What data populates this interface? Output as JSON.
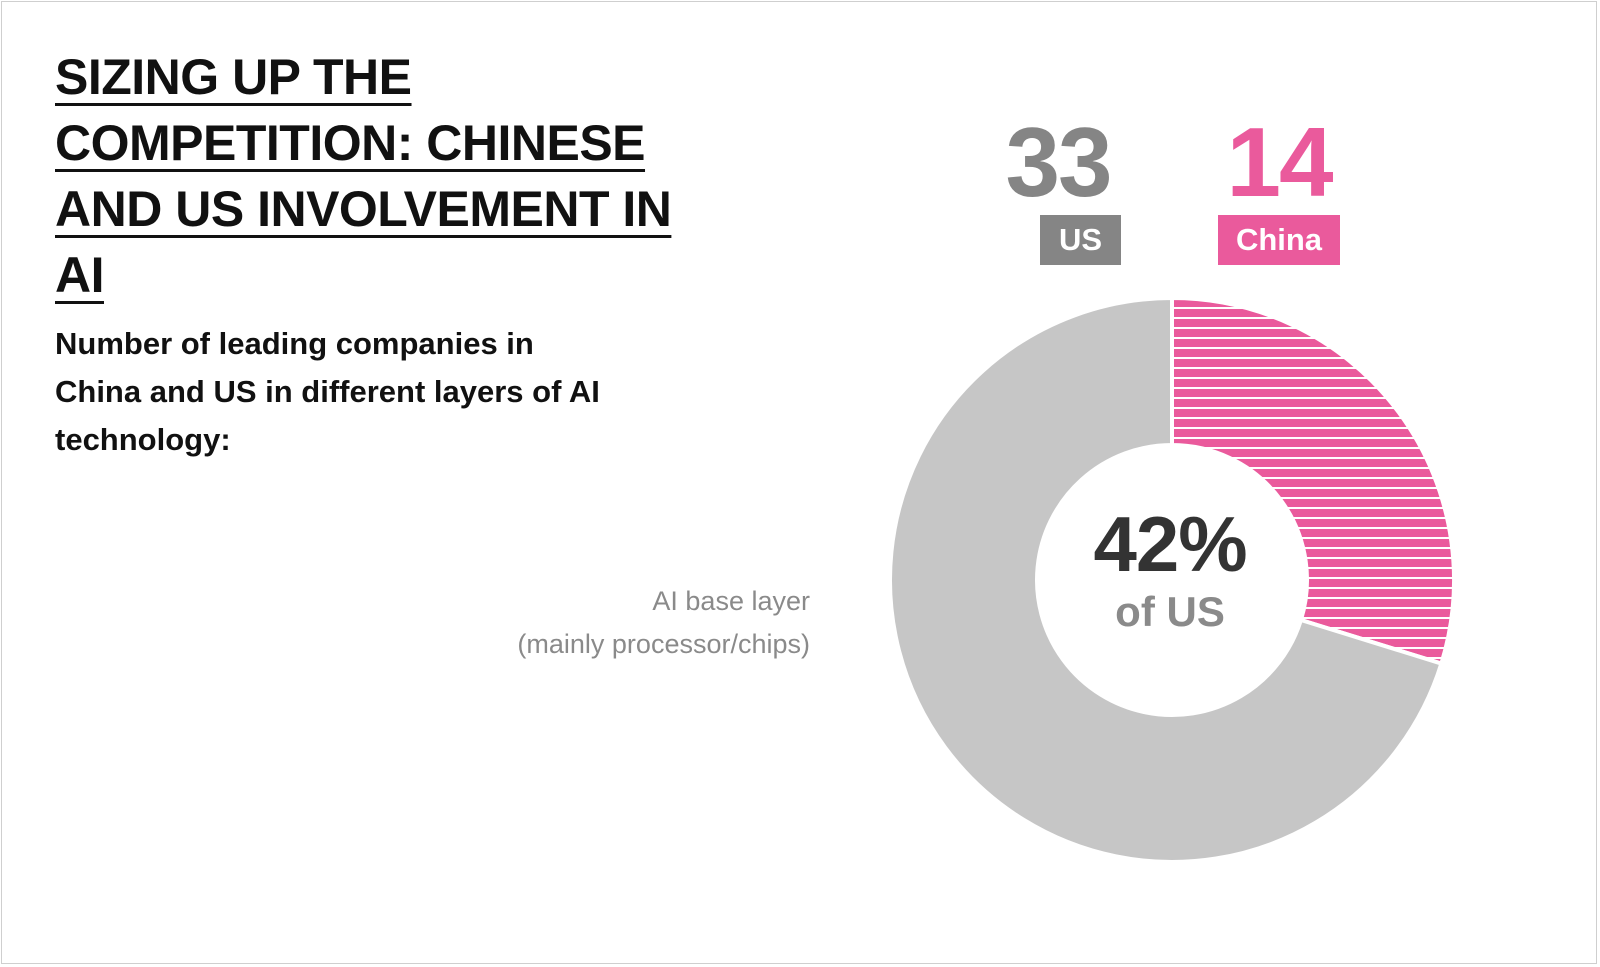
{
  "title": "SIZING UP THE COMPETITION: CHINESE AND US INVOLVEMENT IN AI",
  "subtitle": "Number of leading companies in China and US in different layers of AI technology:",
  "chart_data": {
    "type": "pie",
    "title": "SIZING UP THE COMPETITION: CHINESE AND US INVOLVEMENT IN AI",
    "subtitle": "Number of leading companies in China and US in different layers of AI technology:",
    "category": "AI base layer (mainly processor/chips)",
    "category_lines": [
      "AI base layer",
      "(mainly processor/chips)"
    ],
    "series": [
      {
        "name": "US",
        "value": 33,
        "color": "#c6c6c6",
        "label_color": "#858585"
      },
      {
        "name": "China",
        "value": 14,
        "color": "#ea5a9c",
        "label_color": "#ea5a9c",
        "pattern": "horizontal-stripes"
      }
    ],
    "center_value": "42%",
    "center_label": "of US"
  }
}
